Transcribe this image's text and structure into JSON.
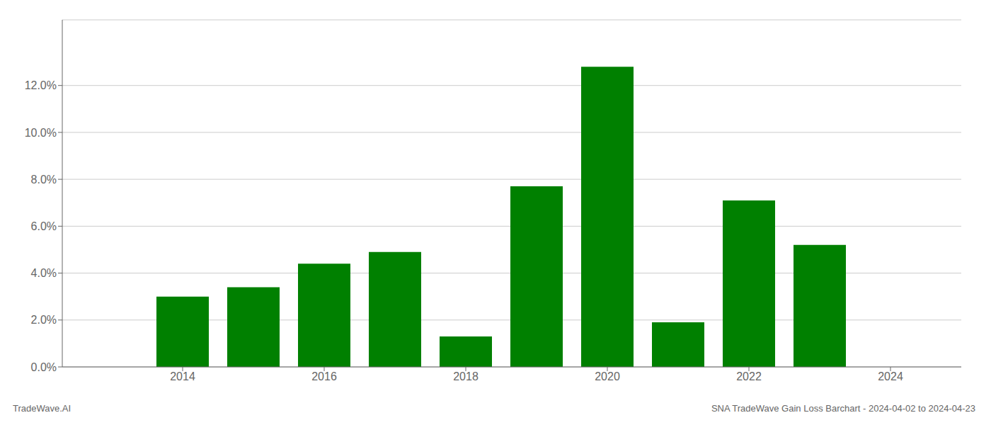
{
  "chart_data": {
    "type": "bar",
    "x": [
      2014,
      2015,
      2016,
      2017,
      2018,
      2019,
      2020,
      2021,
      2022,
      2023
    ],
    "values": [
      0.03,
      0.034,
      0.044,
      0.049,
      0.013,
      0.077,
      0.128,
      0.019,
      0.071,
      0.052
    ],
    "color": "#008000",
    "xlim": [
      2012.3,
      2025.0
    ],
    "xticks": [
      2014,
      2016,
      2018,
      2020,
      2022,
      2024
    ],
    "ylim": [
      0,
      0.148
    ],
    "yticks": [
      {
        "value": 0.0,
        "label": "0.0%"
      },
      {
        "value": 0.02,
        "label": "2.0%"
      },
      {
        "value": 0.04,
        "label": "4.0%"
      },
      {
        "value": 0.06,
        "label": "6.0%"
      },
      {
        "value": 0.08,
        "label": "8.0%"
      },
      {
        "value": 0.1,
        "label": "10.0%"
      },
      {
        "value": 0.12,
        "label": "12.0%"
      }
    ],
    "grid": true,
    "annotations": [
      "TradeWave.AI",
      "SNA TradeWave Gain Loss Barchart - 2024-04-02 to 2024-04-23"
    ]
  }
}
